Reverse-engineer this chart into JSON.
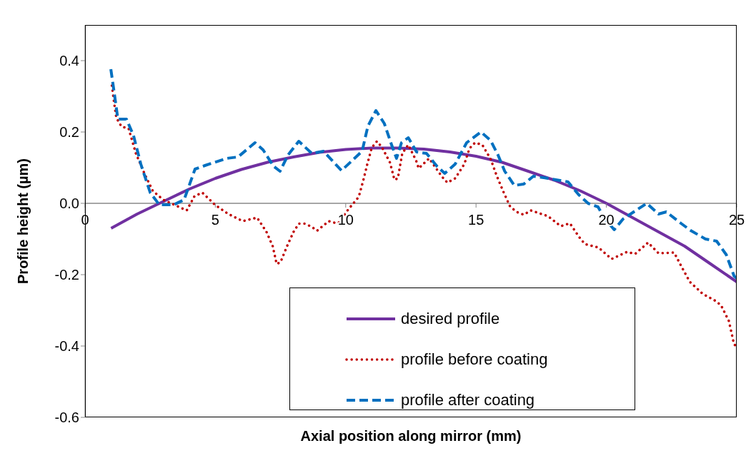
{
  "chart_data": {
    "type": "line",
    "xlabel": "Axial position along mirror (mm)",
    "ylabel": "Profile height (µm)",
    "xlim": [
      0,
      25
    ],
    "xticks": [
      0,
      5,
      10,
      15,
      20,
      25
    ],
    "ylim": [
      -0.6,
      0.5
    ],
    "yticks": [
      -0.6,
      -0.4,
      -0.2,
      {
        "value": 0,
        "label": "0.0"
      },
      0.2,
      0.4
    ],
    "grid": false,
    "legend": "bottom",
    "marker": "none",
    "series": [
      {
        "name": "desired profile",
        "color": "#7030a0",
        "line_style": "solid",
        "x": [
          1,
          2,
          3,
          4,
          5,
          6,
          7,
          8,
          9,
          10,
          11,
          12,
          13,
          14,
          15,
          16,
          17,
          18,
          19,
          20,
          21,
          22,
          23,
          24,
          25
        ],
        "values": [
          -0.07,
          -0.03,
          0.005,
          0.04,
          0.07,
          0.095,
          0.115,
          0.13,
          0.143,
          0.151,
          0.155,
          0.155,
          0.152,
          0.144,
          0.132,
          0.115,
          0.09,
          0.065,
          0.035,
          0.0,
          -0.04,
          -0.08,
          -0.12,
          -0.17,
          -0.22
        ]
      },
      {
        "name": "profile before coating",
        "color": "#c00000",
        "line_style": "dotted",
        "x": [
          1.03,
          1.12,
          1.2,
          1.4,
          1.67,
          1.95,
          2.3,
          2.6,
          3.0,
          3.6,
          3.9,
          4.2,
          4.5,
          5.0,
          5.5,
          6.05,
          6.6,
          6.96,
          7.2,
          7.35,
          7.5,
          7.75,
          8.0,
          8.2,
          8.43,
          8.7,
          8.9,
          9.35,
          9.7,
          10.1,
          10.5,
          10.67,
          10.83,
          11.0,
          11.2,
          11.4,
          11.7,
          11.87,
          12.0,
          12.17,
          12.4,
          12.7,
          12.8,
          13.2,
          13.7,
          13.9,
          14.2,
          14.55,
          14.75,
          14.96,
          15.24,
          15.56,
          15.8,
          16.04,
          16.3,
          16.55,
          16.83,
          17.1,
          17.76,
          18.25,
          18.6,
          18.95,
          19.17,
          19.7,
          20.2,
          20.8,
          21.1,
          21.6,
          22.0,
          22.6,
          22.9,
          23.2,
          23.7,
          24.2,
          24.4,
          24.7,
          24.9,
          25
        ],
        "values": [
          0.33,
          0.28,
          0.24,
          0.215,
          0.21,
          0.14,
          0.08,
          0.035,
          0.01,
          -0.01,
          -0.02,
          0.02,
          0.03,
          -0.005,
          -0.03,
          -0.05,
          -0.04,
          -0.08,
          -0.12,
          -0.17,
          -0.165,
          -0.12,
          -0.08,
          -0.057,
          -0.057,
          -0.066,
          -0.077,
          -0.05,
          -0.057,
          -0.017,
          0.018,
          0.063,
          0.11,
          0.156,
          0.174,
          0.156,
          0.114,
          0.066,
          0.07,
          0.14,
          0.164,
          0.12,
          0.098,
          0.126,
          0.074,
          0.058,
          0.07,
          0.11,
          0.154,
          0.17,
          0.164,
          0.124,
          0.076,
          0.034,
          -0.008,
          -0.024,
          -0.032,
          -0.02,
          -0.036,
          -0.064,
          -0.056,
          -0.094,
          -0.114,
          -0.124,
          -0.156,
          -0.136,
          -0.142,
          -0.11,
          -0.14,
          -0.138,
          -0.18,
          -0.22,
          -0.254,
          -0.274,
          -0.286,
          -0.33,
          -0.396,
          -0.4
        ]
      },
      {
        "name": "profile after coating",
        "color": "#0070c0",
        "line_style": "dashed",
        "x": [
          0.99,
          1.12,
          1.26,
          1.59,
          1.86,
          2.14,
          2.5,
          2.85,
          3.4,
          3.8,
          4.22,
          4.6,
          5.43,
          5.87,
          6.52,
          6.83,
          7.23,
          7.48,
          7.79,
          8.2,
          8.7,
          9.15,
          9.53,
          9.84,
          10.25,
          10.63,
          10.85,
          11.16,
          11.48,
          11.76,
          11.95,
          12.14,
          12.4,
          12.72,
          13.1,
          13.5,
          13.8,
          14.2,
          14.64,
          15.19,
          15.56,
          15.84,
          16.1,
          16.47,
          16.83,
          17.2,
          17.76,
          18.53,
          18.94,
          19.3,
          19.68,
          19.95,
          20.3,
          20.64,
          21.05,
          21.55,
          22.0,
          22.3,
          22.86,
          23.23,
          23.8,
          24.23,
          24.6,
          24.9,
          25
        ],
        "values": [
          0.376,
          0.31,
          0.236,
          0.236,
          0.19,
          0.11,
          0.03,
          -0.004,
          -0.004,
          0.01,
          0.096,
          0.106,
          0.126,
          0.13,
          0.17,
          0.15,
          0.104,
          0.09,
          0.136,
          0.174,
          0.14,
          0.146,
          0.116,
          0.092,
          0.12,
          0.146,
          0.216,
          0.26,
          0.224,
          0.164,
          0.126,
          0.17,
          0.184,
          0.144,
          0.14,
          0.104,
          0.084,
          0.11,
          0.17,
          0.2,
          0.176,
          0.136,
          0.09,
          0.05,
          0.054,
          0.076,
          0.07,
          0.06,
          0.024,
          0.0,
          -0.01,
          -0.044,
          -0.074,
          -0.044,
          -0.024,
          0.0,
          -0.03,
          -0.024,
          -0.056,
          -0.076,
          -0.1,
          -0.106,
          -0.144,
          -0.204,
          -0.21
        ]
      }
    ]
  }
}
